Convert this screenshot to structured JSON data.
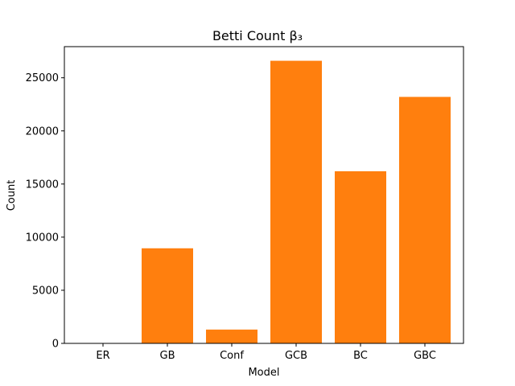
{
  "chart_data": {
    "type": "bar",
    "title": "Betti Count β₃",
    "xlabel": "Model",
    "ylabel": "Count",
    "categories": [
      "ER",
      "GB",
      "Conf",
      "GCB",
      "BC",
      "GBC"
    ],
    "values": [
      0,
      8950,
      1300,
      26600,
      16200,
      23200
    ],
    "ylim": [
      0,
      27930
    ],
    "yticks": [
      0,
      5000,
      10000,
      15000,
      20000,
      25000
    ],
    "bar_color": "#ff7f0e",
    "grid": false
  }
}
